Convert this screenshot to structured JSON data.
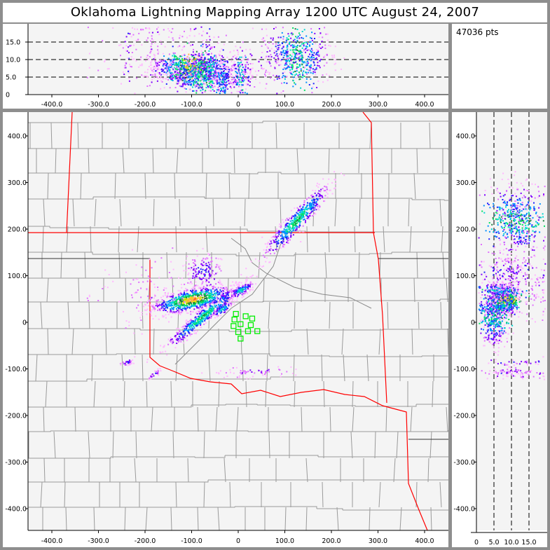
{
  "title": "Oklahoma Lightning Mapping Array    1200 UTC  August 24, 2007",
  "point_count_label": "47036 pts",
  "colors": {
    "frame": "#8e8e8e",
    "plot_bg": "#f4f4f4",
    "county_lines": "#9a9a9a",
    "state_border": "#ff0000",
    "station": "#00ee00",
    "density_scale": [
      "#ffb8ff",
      "#e070ff",
      "#8000ff",
      "#2020ff",
      "#0090ff",
      "#00d8d0",
      "#00e060",
      "#208040",
      "#e8e800",
      "#ffb040",
      "#ff5030"
    ]
  },
  "chart_data": [
    {
      "type": "scatter",
      "panel": "altitude-vs-east-west",
      "xlabel": "",
      "ylabel": "",
      "xlim": [
        -450,
        450
      ],
      "ylim": [
        0,
        20
      ],
      "x_ticks": [
        "-400.0",
        "-300.0",
        "-200.0",
        "-100.0",
        "0",
        "100.0",
        "200.0",
        "300.0",
        "400.0"
      ],
      "x_tick_values": [
        -400,
        -300,
        -200,
        -100,
        0,
        100,
        200,
        300,
        400
      ],
      "y_ticks": [
        "0",
        "5.0",
        "10.0",
        "15.0"
      ],
      "y_tick_values": [
        0,
        5,
        10,
        15
      ],
      "reference_lines_y": [
        5,
        10,
        15
      ]
    },
    {
      "type": "scatter",
      "panel": "plan-view-map",
      "xlim": [
        -450,
        450
      ],
      "ylim": [
        -445,
        450
      ],
      "x_ticks": [
        "-400.0",
        "-300.0",
        "-200.0",
        "-100.0",
        "0",
        "100.0",
        "200.0",
        "300.0",
        "400.0"
      ],
      "x_tick_values": [
        -400,
        -300,
        -200,
        -100,
        0,
        100,
        200,
        300,
        400
      ],
      "y_ticks": [
        "400.0",
        "300.0",
        "200.0",
        "100.0",
        "0",
        "-100.0",
        "-200.0",
        "-300.0",
        "-400.0"
      ],
      "y_tick_values": [
        400,
        300,
        200,
        100,
        0,
        -100,
        -200,
        -300,
        -400
      ],
      "stations_km": [
        [
          -5,
          18
        ],
        [
          16,
          13
        ],
        [
          30,
          8
        ],
        [
          -8,
          6
        ],
        [
          5,
          -4
        ],
        [
          -10,
          -8
        ],
        [
          27,
          -6
        ],
        [
          0,
          -21
        ],
        [
          21,
          -19
        ],
        [
          41,
          -19
        ],
        [
          5,
          -35
        ]
      ],
      "source_regions": [
        {
          "x": 125,
          "y": 220,
          "sx": 50,
          "sy": 9,
          "rot": 48,
          "z": 11,
          "zsd": 4,
          "n": 500,
          "peak": 7
        },
        {
          "x": -100,
          "y": 50,
          "sx": 42,
          "sy": 11,
          "rot": 12,
          "z": 8,
          "zsd": 1.8,
          "n": 800,
          "peak": 10
        },
        {
          "x": -75,
          "y": 15,
          "sx": 52,
          "sy": 7,
          "rot": 40,
          "z": 5,
          "zsd": 1.8,
          "n": 450,
          "peak": 7
        },
        {
          "x": 5,
          "y": 70,
          "sx": 14,
          "sy": 5,
          "rot": 30,
          "z": 6,
          "zsd": 2.5,
          "n": 120,
          "peak": 6
        },
        {
          "x": -35,
          "y": 30,
          "sx": 12,
          "sy": 5,
          "rot": 35,
          "z": 4,
          "zsd": 2,
          "n": 80,
          "peak": 6
        },
        {
          "x": -75,
          "y": 110,
          "sx": 20,
          "sy": 20,
          "rot": 0,
          "z": 10,
          "zsd": 4,
          "n": 150,
          "peak": 3
        },
        {
          "x": -240,
          "y": -85,
          "sx": 8,
          "sy": 3,
          "rot": 20,
          "z": 12,
          "zsd": 4,
          "n": 30,
          "peak": 3
        },
        {
          "x": -180,
          "y": -110,
          "sx": 8,
          "sy": 3,
          "rot": 30,
          "z": 12,
          "zsd": 4,
          "n": 25,
          "peak": 3
        },
        {
          "x": -180,
          "y": 60,
          "sx": 60,
          "sy": 40,
          "rot": 0,
          "z": 12,
          "zsd": 5,
          "n": 120,
          "peak": 1
        },
        {
          "x": 40,
          "y": -105,
          "sx": 45,
          "sy": 6,
          "rot": 0,
          "z": 10,
          "zsd": 4,
          "n": 60,
          "peak": 2
        }
      ]
    },
    {
      "type": "scatter",
      "panel": "north-south-vs-altitude",
      "xlim": [
        0,
        20
      ],
      "ylim": [
        -445,
        450
      ],
      "x_ticks": [
        "0",
        "5.0",
        "10.0",
        "15.0"
      ],
      "x_tick_values": [
        0,
        5,
        10,
        15
      ],
      "y_ticks": [
        "400.0",
        "300.0",
        "200.0",
        "100.0",
        "0",
        "-100.0",
        "-200.0",
        "-300.0",
        "-400.0"
      ],
      "y_tick_values": [
        400,
        300,
        200,
        100,
        0,
        -100,
        -200,
        -300,
        -400
      ],
      "reference_lines_x": [
        5,
        10,
        15
      ]
    }
  ]
}
